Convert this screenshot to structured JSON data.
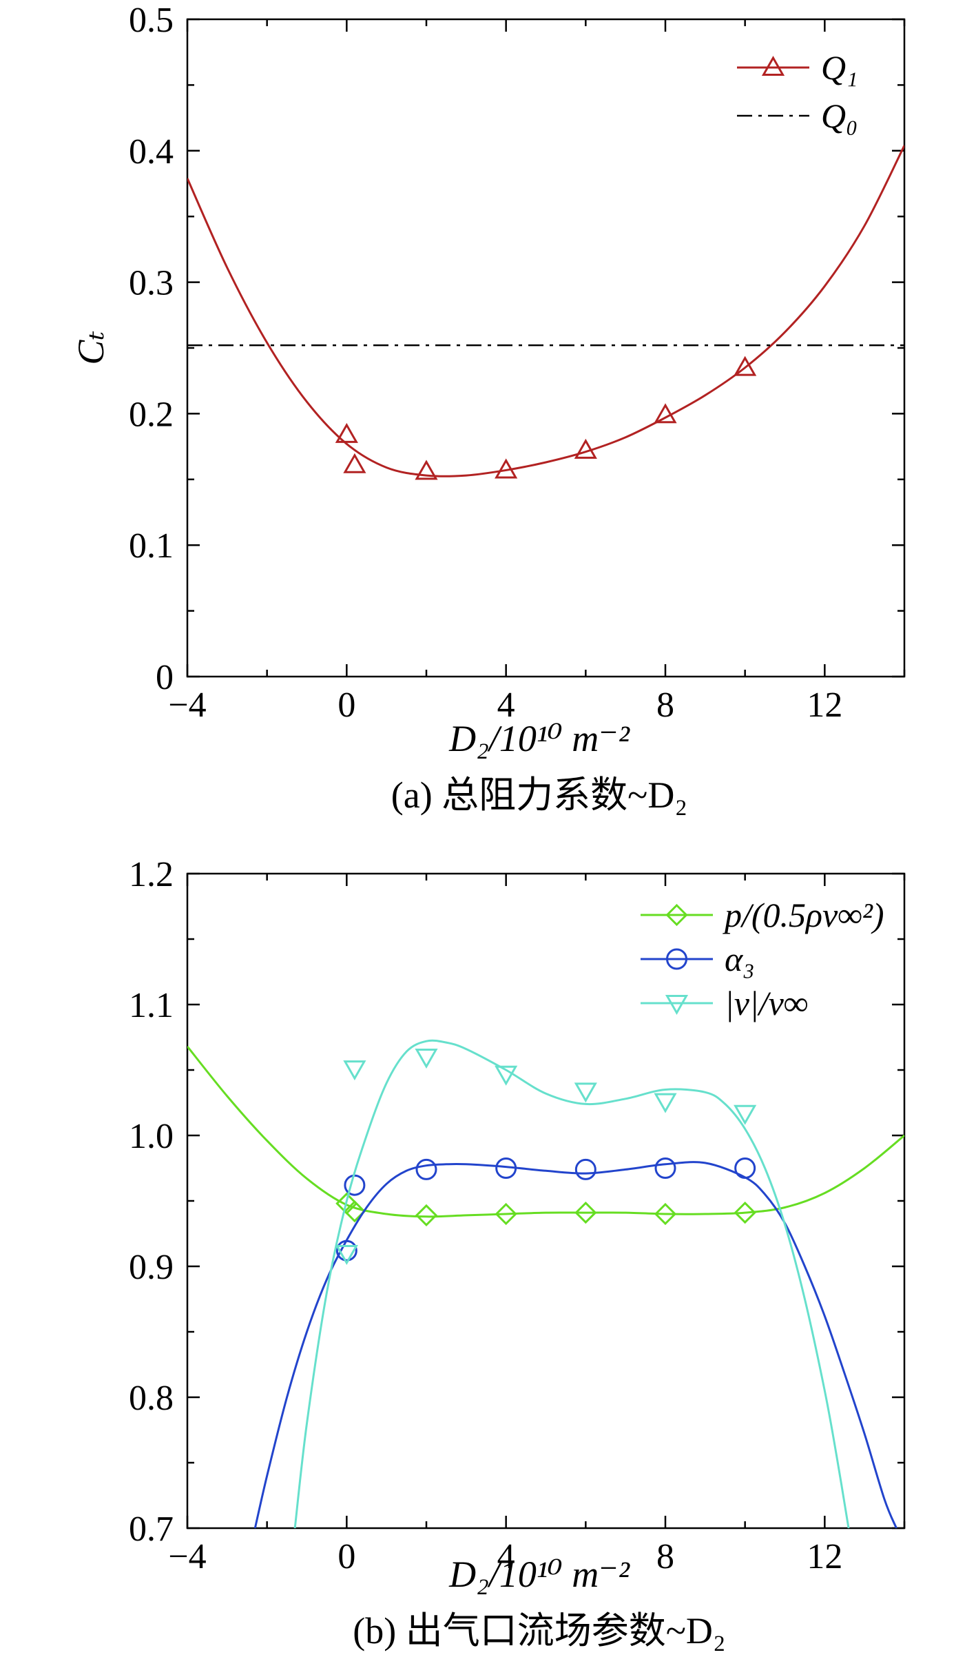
{
  "chart_data": [
    {
      "type": "line",
      "panel": "a",
      "caption": "(a) 总阻力系数~D₂",
      "xlabel": "D₂/10¹⁰ m⁻²",
      "ylabel": "Cₜ",
      "xlim": [
        -4,
        14
      ],
      "ylim": [
        0,
        0.5
      ],
      "xticks": [
        -4,
        0,
        4,
        8,
        12
      ],
      "xtick_labels": [
        "−4",
        "0",
        "4",
        "8",
        "12"
      ],
      "yticks": [
        0,
        0.1,
        0.2,
        0.3,
        0.4,
        0.5
      ],
      "ytick_labels": [
        "0",
        "0.1",
        "0.2",
        "0.3",
        "0.4",
        "0.5"
      ],
      "grid": false,
      "legend_position": "top-right",
      "series": [
        {
          "name": "Q₁",
          "color": "#b22222",
          "marker": "triangle-up",
          "x": [
            0,
            0.2,
            2,
            4,
            6,
            8,
            10
          ],
          "y": [
            0.184,
            0.161,
            0.156,
            0.157,
            0.172,
            0.199,
            0.235
          ],
          "fit_x": [
            -4,
            -3,
            -2,
            -1,
            0,
            1,
            2,
            3,
            4,
            5,
            6,
            7,
            8,
            9,
            10,
            11,
            12,
            13,
            14
          ],
          "fit_y": [
            0.379,
            0.311,
            0.254,
            0.209,
            0.177,
            0.159,
            0.153,
            0.153,
            0.157,
            0.163,
            0.171,
            0.182,
            0.197,
            0.214,
            0.235,
            0.262,
            0.297,
            0.343,
            0.404
          ]
        },
        {
          "name": "Q₀",
          "color": "#000000",
          "style": "dash-dot",
          "y_const": 0.252
        }
      ]
    },
    {
      "type": "line",
      "panel": "b",
      "caption": "(b) 出气口流场参数~D₂",
      "xlabel": "D₂/10¹⁰ m⁻²",
      "xlim": [
        -4,
        14
      ],
      "ylim": [
        0.7,
        1.2
      ],
      "xticks": [
        -4,
        0,
        4,
        8,
        12
      ],
      "xtick_labels": [
        "−4",
        "0",
        "4",
        "8",
        "12"
      ],
      "yticks": [
        0.7,
        0.8,
        0.9,
        1.0,
        1.1,
        1.2
      ],
      "ytick_labels": [
        "0.7",
        "0.8",
        "0.9",
        "1.0",
        "1.1",
        "1.2"
      ],
      "grid": false,
      "legend_position": "top-right",
      "series": [
        {
          "name": "p/(0.5ρv∞²)",
          "color": "#66dd22",
          "marker": "diamond",
          "x": [
            0,
            0.2,
            2,
            4,
            6,
            8,
            10
          ],
          "y": [
            0.948,
            0.942,
            0.939,
            0.94,
            0.941,
            0.94,
            0.941
          ],
          "fit_x": [
            -4,
            -3,
            -2,
            -1,
            0,
            1,
            2,
            3,
            4,
            5,
            6,
            7,
            8,
            9,
            10,
            11,
            12,
            13,
            14
          ],
          "fit_y": [
            1.068,
            1.03,
            0.996,
            0.967,
            0.947,
            0.94,
            0.938,
            0.939,
            0.94,
            0.941,
            0.941,
            0.941,
            0.94,
            0.94,
            0.941,
            0.945,
            0.956,
            0.975,
            1.0
          ]
        },
        {
          "name": "α₃",
          "color": "#2244cc",
          "marker": "circle",
          "x": [
            0,
            0.2,
            2,
            4,
            6,
            8,
            10
          ],
          "y": [
            0.912,
            0.962,
            0.974,
            0.975,
            0.974,
            0.975,
            0.975
          ],
          "fit_x": [
            -2.3,
            -2,
            -1.5,
            -1,
            -0.5,
            0,
            0.5,
            1,
            1.5,
            2,
            2.5,
            3,
            4,
            5,
            6,
            7,
            8,
            9,
            10,
            10.5,
            11,
            11.5,
            12,
            12.5,
            13,
            13.5,
            13.8
          ],
          "fit_y": [
            0.7,
            0.74,
            0.8,
            0.85,
            0.89,
            0.92,
            0.945,
            0.963,
            0.973,
            0.977,
            0.978,
            0.978,
            0.976,
            0.973,
            0.971,
            0.974,
            0.978,
            0.979,
            0.968,
            0.955,
            0.933,
            0.9,
            0.862,
            0.818,
            0.772,
            0.722,
            0.7
          ]
        },
        {
          "name": "|v|/v∞",
          "color": "#66e0cc",
          "marker": "triangle-down",
          "x": [
            0,
            0.2,
            2,
            4,
            6,
            8,
            10
          ],
          "y": [
            0.91,
            1.051,
            1.06,
            1.047,
            1.034,
            1.026,
            1.017
          ],
          "fit_x": [
            -1.3,
            -1,
            -0.5,
            0,
            0.5,
            1,
            1.5,
            2,
            2.5,
            3,
            4,
            5,
            6,
            7,
            8,
            9,
            9.5,
            10,
            10.5,
            11,
            11.5,
            12,
            12.3,
            12.6
          ],
          "fit_y": [
            0.7,
            0.78,
            0.88,
            0.95,
            1.0,
            1.04,
            1.064,
            1.072,
            1.071,
            1.066,
            1.05,
            1.032,
            1.024,
            1.028,
            1.035,
            1.033,
            1.024,
            1.005,
            0.975,
            0.932,
            0.875,
            0.805,
            0.755,
            0.7
          ]
        }
      ]
    }
  ]
}
